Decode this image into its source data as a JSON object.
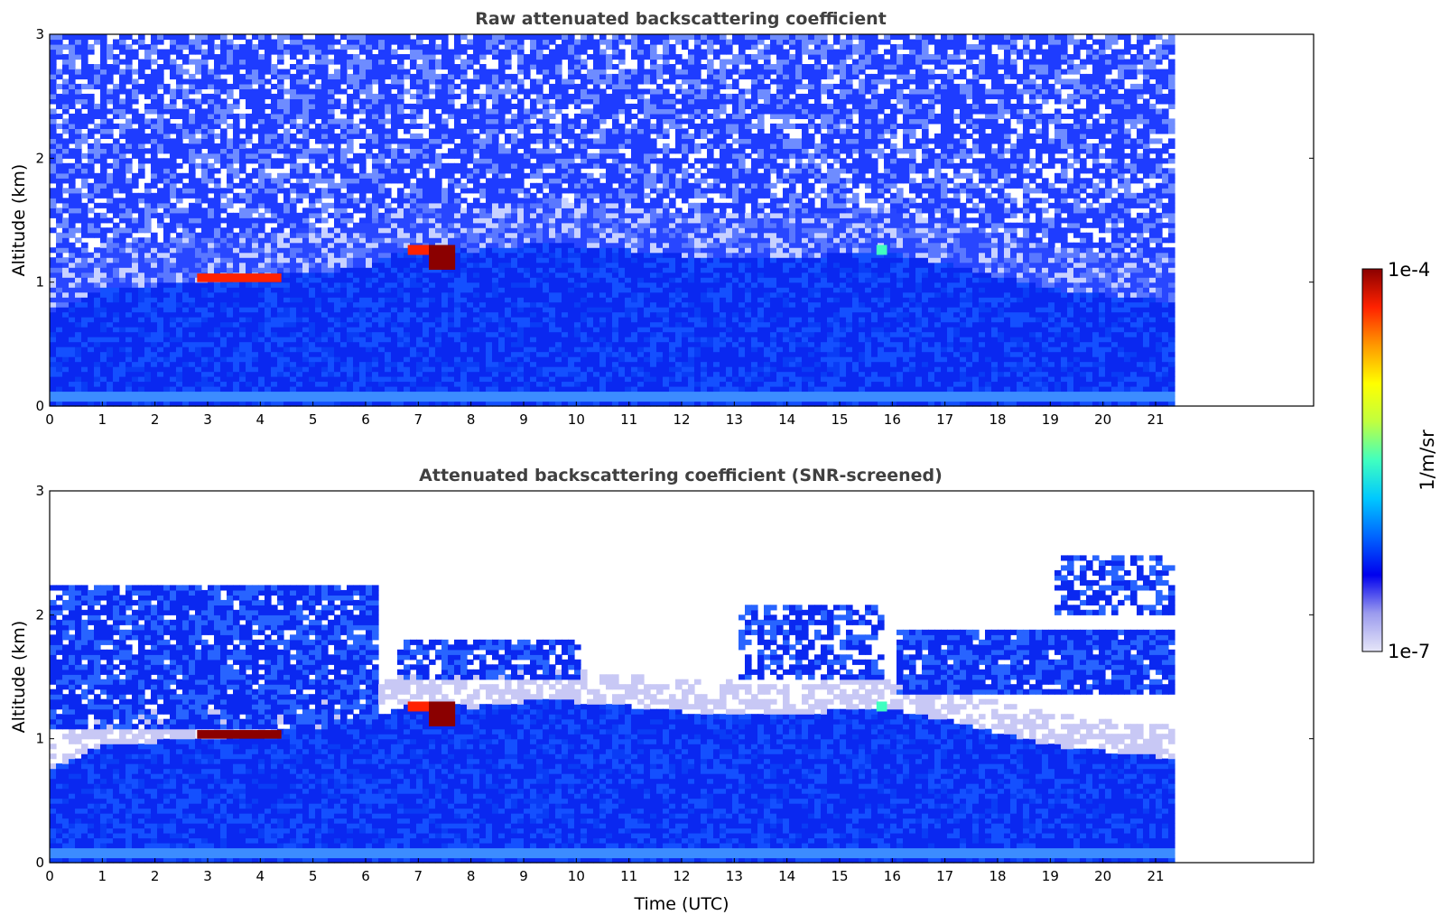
{
  "chart_data": [
    {
      "type": "heatmap",
      "title": "Raw attenuated backscattering coefficient",
      "xlabel": "",
      "ylabel": "Altitude (km)",
      "xlim": [
        0,
        24
      ],
      "ylim": [
        0,
        3
      ],
      "x_ticks": [
        "0",
        "1",
        "2",
        "3",
        "4",
        "5",
        "6",
        "7",
        "8",
        "9",
        "10",
        "11",
        "12",
        "13",
        "14",
        "15",
        "16",
        "17",
        "18",
        "19",
        "20",
        "21"
      ],
      "y_ticks": [
        "0",
        "1",
        "2",
        "3"
      ],
      "data_x_end": 21.3,
      "noise_level": 0.55,
      "boundary_layer_top_km": [
        [
          0,
          0.75
        ],
        [
          1,
          0.95
        ],
        [
          2,
          0.98
        ],
        [
          3,
          1.0
        ],
        [
          4,
          1.05
        ],
        [
          5,
          1.08
        ],
        [
          6,
          1.12
        ],
        [
          6.6,
          1.25
        ],
        [
          7,
          1.3
        ],
        [
          7.7,
          1.28
        ],
        [
          8,
          1.25
        ],
        [
          9,
          1.3
        ],
        [
          9.6,
          1.33
        ],
        [
          10,
          1.3
        ],
        [
          12,
          1.22
        ],
        [
          14,
          1.2
        ],
        [
          15.8,
          1.25
        ],
        [
          16.5,
          1.2
        ],
        [
          17,
          1.15
        ],
        [
          18,
          1.05
        ],
        [
          19,
          0.95
        ],
        [
          20,
          0.9
        ],
        [
          21.3,
          0.85
        ]
      ],
      "cloud_features": [
        {
          "x": [
            2.8,
            4.4
          ],
          "y": [
            1.0,
            1.07
          ],
          "level": "high"
        },
        {
          "x": [
            6.8,
            7.2
          ],
          "y": [
            1.22,
            1.3
          ],
          "level": "high"
        },
        {
          "x": [
            7.2,
            7.7
          ],
          "y": [
            1.1,
            1.3
          ],
          "level": "max"
        },
        {
          "x": [
            15.7,
            15.9
          ],
          "y": [
            1.22,
            1.3
          ],
          "level": "medium"
        }
      ]
    },
    {
      "type": "heatmap",
      "title": "Attenuated backscattering coefficient (SNR-screened)",
      "xlabel": "Time (UTC)",
      "ylabel": "Altitude (km)",
      "xlim": [
        0,
        24
      ],
      "ylim": [
        0,
        3
      ],
      "x_ticks": [
        "0",
        "1",
        "2",
        "3",
        "4",
        "5",
        "6",
        "7",
        "8",
        "9",
        "10",
        "11",
        "12",
        "13",
        "14",
        "15",
        "16",
        "17",
        "18",
        "19",
        "20",
        "21"
      ],
      "y_ticks": [
        "0",
        "1",
        "2",
        "3"
      ],
      "data_x_end": 21.3,
      "screened": true,
      "boundary_layer_top_km": [
        [
          0,
          0.75
        ],
        [
          1,
          0.95
        ],
        [
          2,
          0.98
        ],
        [
          3,
          1.0
        ],
        [
          4,
          1.05
        ],
        [
          5,
          1.08
        ],
        [
          6,
          1.12
        ],
        [
          6.6,
          1.25
        ],
        [
          7,
          1.3
        ],
        [
          7.7,
          1.28
        ],
        [
          8,
          1.25
        ],
        [
          9,
          1.3
        ],
        [
          9.6,
          1.33
        ],
        [
          10,
          1.3
        ],
        [
          12,
          1.22
        ],
        [
          14,
          1.2
        ],
        [
          15.8,
          1.25
        ],
        [
          16.5,
          1.2
        ],
        [
          17,
          1.15
        ],
        [
          18,
          1.05
        ],
        [
          19,
          0.95
        ],
        [
          20,
          0.9
        ],
        [
          21.3,
          0.85
        ]
      ],
      "aerosol_layers": [
        {
          "x": [
            0,
            6.2
          ],
          "y": [
            1.1,
            2.25
          ],
          "density": 0.9
        },
        {
          "x": [
            6.5,
            10.0
          ],
          "y": [
            1.5,
            1.8
          ],
          "density": 0.8
        },
        {
          "x": [
            13.0,
            15.8
          ],
          "y": [
            1.5,
            2.1
          ],
          "density": 0.6
        },
        {
          "x": [
            16.0,
            21.3
          ],
          "y": [
            1.35,
            1.9
          ],
          "density": 0.9
        },
        {
          "x": [
            19.0,
            21.3
          ],
          "y": [
            2.0,
            2.5
          ],
          "density": 0.6
        }
      ],
      "cloud_features": [
        {
          "x": [
            2.8,
            4.4
          ],
          "y": [
            1.0,
            1.07
          ],
          "level": "max"
        },
        {
          "x": [
            6.8,
            7.2
          ],
          "y": [
            1.22,
            1.3
          ],
          "level": "high"
        },
        {
          "x": [
            7.2,
            7.7
          ],
          "y": [
            1.1,
            1.3
          ],
          "level": "max"
        },
        {
          "x": [
            15.7,
            15.9
          ],
          "y": [
            1.22,
            1.3
          ],
          "level": "medium"
        }
      ]
    }
  ],
  "colorbar": {
    "label": "1/m/sr",
    "max_label": "1e-4",
    "min_label": "1e-7",
    "scale": "log",
    "range": [
      1e-07,
      0.0001
    ],
    "colormap": [
      "#e6e6f8",
      "#9b9bee",
      "#0000ee",
      "#0064ff",
      "#00c8ff",
      "#40ffc0",
      "#c0ff40",
      "#ffff00",
      "#ff9900",
      "#ff2200",
      "#8b0000"
    ]
  }
}
